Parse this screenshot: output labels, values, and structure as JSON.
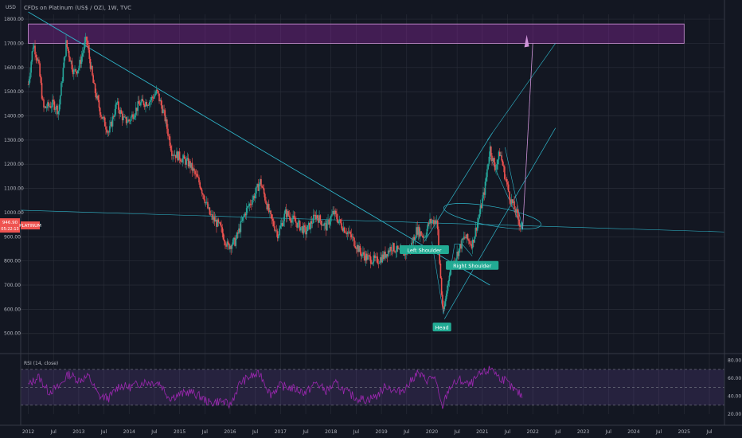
{
  "header": {
    "currency": "USD",
    "symbol_title": "CFDs on Platinum (US$ / OZ), 1W, TVC"
  },
  "price_badge": {
    "value": "946.90",
    "countdown": "05:22:13",
    "label": "PLATINUM"
  },
  "rsi_panel": {
    "title": "RSI (14, close)",
    "levels": [
      "80.00",
      "60.00",
      "40.00",
      "20.00"
    ]
  },
  "annotations": {
    "left_shoulder": "Left Shoulder",
    "head": "Head",
    "right_shoulder": "Right Shoulder"
  },
  "colors": {
    "background": "#131722",
    "grid": "#2a2e39",
    "candle_up": "#26a69a",
    "candle_down": "#ef5350",
    "trendline": "#2fb5c9",
    "rsi_line": "#9c27b0",
    "rsi_band": "#7e57c2",
    "resistance_zone": "#9c27b0",
    "label_bg": "#22ab94"
  },
  "chart_data": [
    {
      "type": "candlestick",
      "title": "CFDs on Platinum (US$ / OZ), 1W, TVC",
      "ylabel": "USD",
      "ylim": [
        430,
        1820
      ],
      "y_ticks": [
        500,
        600,
        700,
        800,
        900,
        1000,
        1100,
        1200,
        1300,
        1400,
        1500,
        1600,
        1700,
        1800
      ],
      "y_tick_labels": [
        "500.00",
        "600.00",
        "700.00",
        "800.00",
        "900.00",
        "1000.00",
        "1100.00",
        "1200.00",
        "1300.00",
        "1400.00",
        "1500.00",
        "1600.00",
        "1700.00",
        "1800.00"
      ],
      "x_tick_labels": [
        "2012",
        "Jul",
        "2013",
        "Jul",
        "2014",
        "Jul",
        "2015",
        "Jul",
        "2016",
        "Jul",
        "2017",
        "Jul",
        "2018",
        "Jul",
        "2019",
        "Jul",
        "2020",
        "Jul",
        "2021",
        "Jul",
        "2022",
        "Jul",
        "2023",
        "Jul",
        "2024",
        "Jul",
        "2025",
        "Jul"
      ],
      "price_path": [
        [
          2012.0,
          1530
        ],
        [
          2012.1,
          1700
        ],
        [
          2012.2,
          1620
        ],
        [
          2012.3,
          1430
        ],
        [
          2012.5,
          1450
        ],
        [
          2012.6,
          1420
        ],
        [
          2012.75,
          1700
        ],
        [
          2012.9,
          1580
        ],
        [
          2013.0,
          1600
        ],
        [
          2013.15,
          1720
        ],
        [
          2013.3,
          1520
        ],
        [
          2013.45,
          1400
        ],
        [
          2013.6,
          1330
        ],
        [
          2013.75,
          1450
        ],
        [
          2013.9,
          1380
        ],
        [
          2014.0,
          1380
        ],
        [
          2014.2,
          1450
        ],
        [
          2014.4,
          1460
        ],
        [
          2014.55,
          1500
        ],
        [
          2014.7,
          1400
        ],
        [
          2014.85,
          1250
        ],
        [
          2015.0,
          1230
        ],
        [
          2015.2,
          1200
        ],
        [
          2015.4,
          1120
        ],
        [
          2015.6,
          990
        ],
        [
          2015.8,
          940
        ],
        [
          2015.95,
          860
        ],
        [
          2016.1,
          880
        ],
        [
          2016.3,
          1000
        ],
        [
          2016.5,
          1080
        ],
        [
          2016.6,
          1130
        ],
        [
          2016.8,
          980
        ],
        [
          2016.95,
          910
        ],
        [
          2017.1,
          1000
        ],
        [
          2017.3,
          960
        ],
        [
          2017.5,
          920
        ],
        [
          2017.7,
          990
        ],
        [
          2017.9,
          940
        ],
        [
          2018.05,
          1000
        ],
        [
          2018.2,
          950
        ],
        [
          2018.4,
          900
        ],
        [
          2018.6,
          830
        ],
        [
          2018.75,
          810
        ],
        [
          2018.9,
          800
        ],
        [
          2019.05,
          820
        ],
        [
          2019.2,
          860
        ],
        [
          2019.4,
          830
        ],
        [
          2019.55,
          840
        ],
        [
          2019.7,
          930
        ],
        [
          2019.85,
          900
        ],
        [
          2019.95,
          960
        ],
        [
          2020.1,
          970
        ],
        [
          2020.2,
          640
        ],
        [
          2020.23,
          580
        ],
        [
          2020.35,
          760
        ],
        [
          2020.5,
          830
        ],
        [
          2020.65,
          900
        ],
        [
          2020.8,
          870
        ],
        [
          2020.95,
          1000
        ],
        [
          2021.05,
          1100
        ],
        [
          2021.15,
          1270
        ],
        [
          2021.25,
          1180
        ],
        [
          2021.35,
          1250
        ],
        [
          2021.45,
          1150
        ],
        [
          2021.55,
          1060
        ],
        [
          2021.65,
          1010
        ],
        [
          2021.75,
          950
        ],
        [
          2021.8,
          946.9
        ]
      ],
      "last_price": 946.9,
      "zones": [
        {
          "name": "resistance",
          "y_from": 1700,
          "y_to": 1780,
          "x_from": 2012.0,
          "x_to": 2025.0
        }
      ],
      "annotations": [
        "Left Shoulder",
        "Head",
        "Right Shoulder"
      ],
      "pattern": "inverse head and shoulders"
    },
    {
      "type": "line",
      "title": "RSI (14, close)",
      "ylim": [
        20,
        85
      ],
      "y_tick_labels": [
        "80.00",
        "60.00",
        "40.00",
        "20.00"
      ],
      "levels": [
        70,
        50,
        30
      ],
      "rsi_path": [
        [
          2012.0,
          52
        ],
        [
          2012.2,
          62
        ],
        [
          2012.4,
          45
        ],
        [
          2012.6,
          50
        ],
        [
          2012.8,
          65
        ],
        [
          2013.0,
          58
        ],
        [
          2013.2,
          62
        ],
        [
          2013.4,
          40
        ],
        [
          2013.6,
          38
        ],
        [
          2013.8,
          52
        ],
        [
          2014.0,
          50
        ],
        [
          2014.3,
          56
        ],
        [
          2014.6,
          55
        ],
        [
          2014.8,
          38
        ],
        [
          2015.0,
          42
        ],
        [
          2015.2,
          45
        ],
        [
          2015.4,
          40
        ],
        [
          2015.6,
          32
        ],
        [
          2015.8,
          35
        ],
        [
          2016.0,
          30
        ],
        [
          2016.2,
          55
        ],
        [
          2016.4,
          62
        ],
        [
          2016.6,
          65
        ],
        [
          2016.8,
          42
        ],
        [
          2017.0,
          52
        ],
        [
          2017.3,
          48
        ],
        [
          2017.5,
          44
        ],
        [
          2017.7,
          55
        ],
        [
          2017.9,
          46
        ],
        [
          2018.1,
          54
        ],
        [
          2018.3,
          45
        ],
        [
          2018.5,
          38
        ],
        [
          2018.7,
          36
        ],
        [
          2018.9,
          40
        ],
        [
          2019.1,
          52
        ],
        [
          2019.3,
          44
        ],
        [
          2019.5,
          50
        ],
        [
          2019.7,
          66
        ],
        [
          2019.9,
          58
        ],
        [
          2020.05,
          62
        ],
        [
          2020.2,
          27
        ],
        [
          2020.35,
          50
        ],
        [
          2020.55,
          58
        ],
        [
          2020.75,
          52
        ],
        [
          2020.95,
          64
        ],
        [
          2021.1,
          68
        ],
        [
          2021.2,
          72
        ],
        [
          2021.3,
          62
        ],
        [
          2021.45,
          58
        ],
        [
          2021.6,
          48
        ],
        [
          2021.8,
          40
        ]
      ]
    }
  ]
}
